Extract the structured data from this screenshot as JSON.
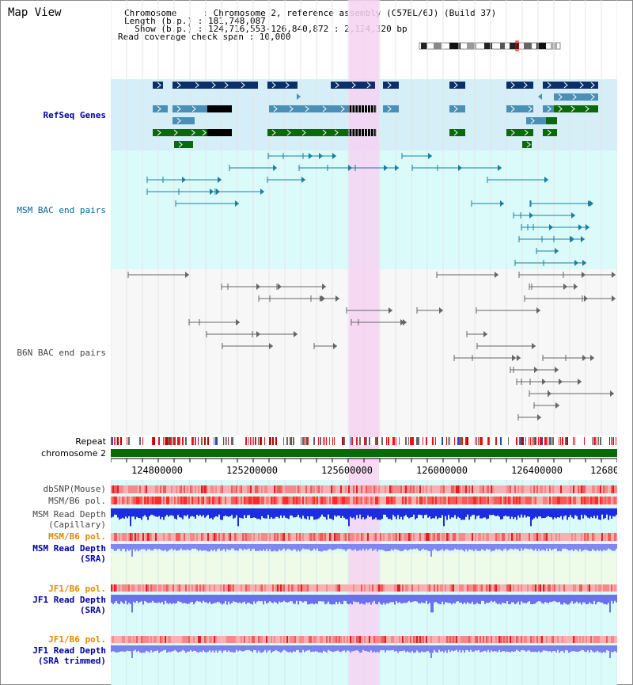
{
  "app": {
    "title": "Map View"
  },
  "info": {
    "lines": [
      "Chromosome     : Chromosome 2, reference assembly (C57BL/6J) (Build 37)",
      "Length (b.p.) : 181,748,087",
      "  Show (b.p.) : 124,716,553-126,840,872 : 2,124,320 bp",
      "Read coverage check span : 10,000"
    ]
  },
  "tracks": {
    "refseq": {
      "label": "RefSeq Genes",
      "color": "#0000aa"
    },
    "msm_bac": {
      "label": "MSM BAC end pairs",
      "color": "#006699"
    },
    "b6n_bac": {
      "label": "B6N BAC end pairs",
      "color": "#444444"
    },
    "repeat": {
      "label": "Repeat"
    },
    "chromosome": {
      "label": "chromosome 2"
    },
    "dbsnp": {
      "label": "dbSNP(Mouse)",
      "color": "#444444"
    },
    "msm_b6_pol": {
      "label": "MSM/B6 pol.",
      "color": "#444444"
    },
    "msm_read_depth_cap": {
      "label": "MSM Read Depth\n(Capillary)",
      "color": "#444444"
    },
    "msm_b6_pol2": {
      "label": "MSM/B6 pol.",
      "color": "#e08a00"
    },
    "msm_read_depth_sra": {
      "label": "MSM Read Depth\n(SRA)",
      "color": "#0000aa"
    },
    "jf1_b6_pol": {
      "label": "JF1/B6 pol.",
      "color": "#e08a00"
    },
    "jf1_read_depth_sra": {
      "label": "JF1 Read Depth\n(SRA)",
      "color": "#0000aa"
    },
    "jf1_b6_pol2": {
      "label": "JF1/B6 pol.",
      "color": "#e08a00"
    },
    "jf1_read_depth_trim": {
      "label": "JF1 Read Depth\n(SRA trimmed)",
      "color": "#0000aa"
    }
  },
  "axis": {
    "ticks": [
      "124800000",
      "125200000",
      "125600000",
      "126000000",
      "126400000",
      "12680"
    ]
  },
  "colors": {
    "refseq_bg": "#d6eef8",
    "msm_bg": "#dbfbfb",
    "highlight": "#f6d2f2",
    "gene_dark": "#0b2f6a",
    "gene_mid": "#4a8fb8",
    "gene_green": "#0a6a0a",
    "chrom_green": "#0a6a0a"
  }
}
